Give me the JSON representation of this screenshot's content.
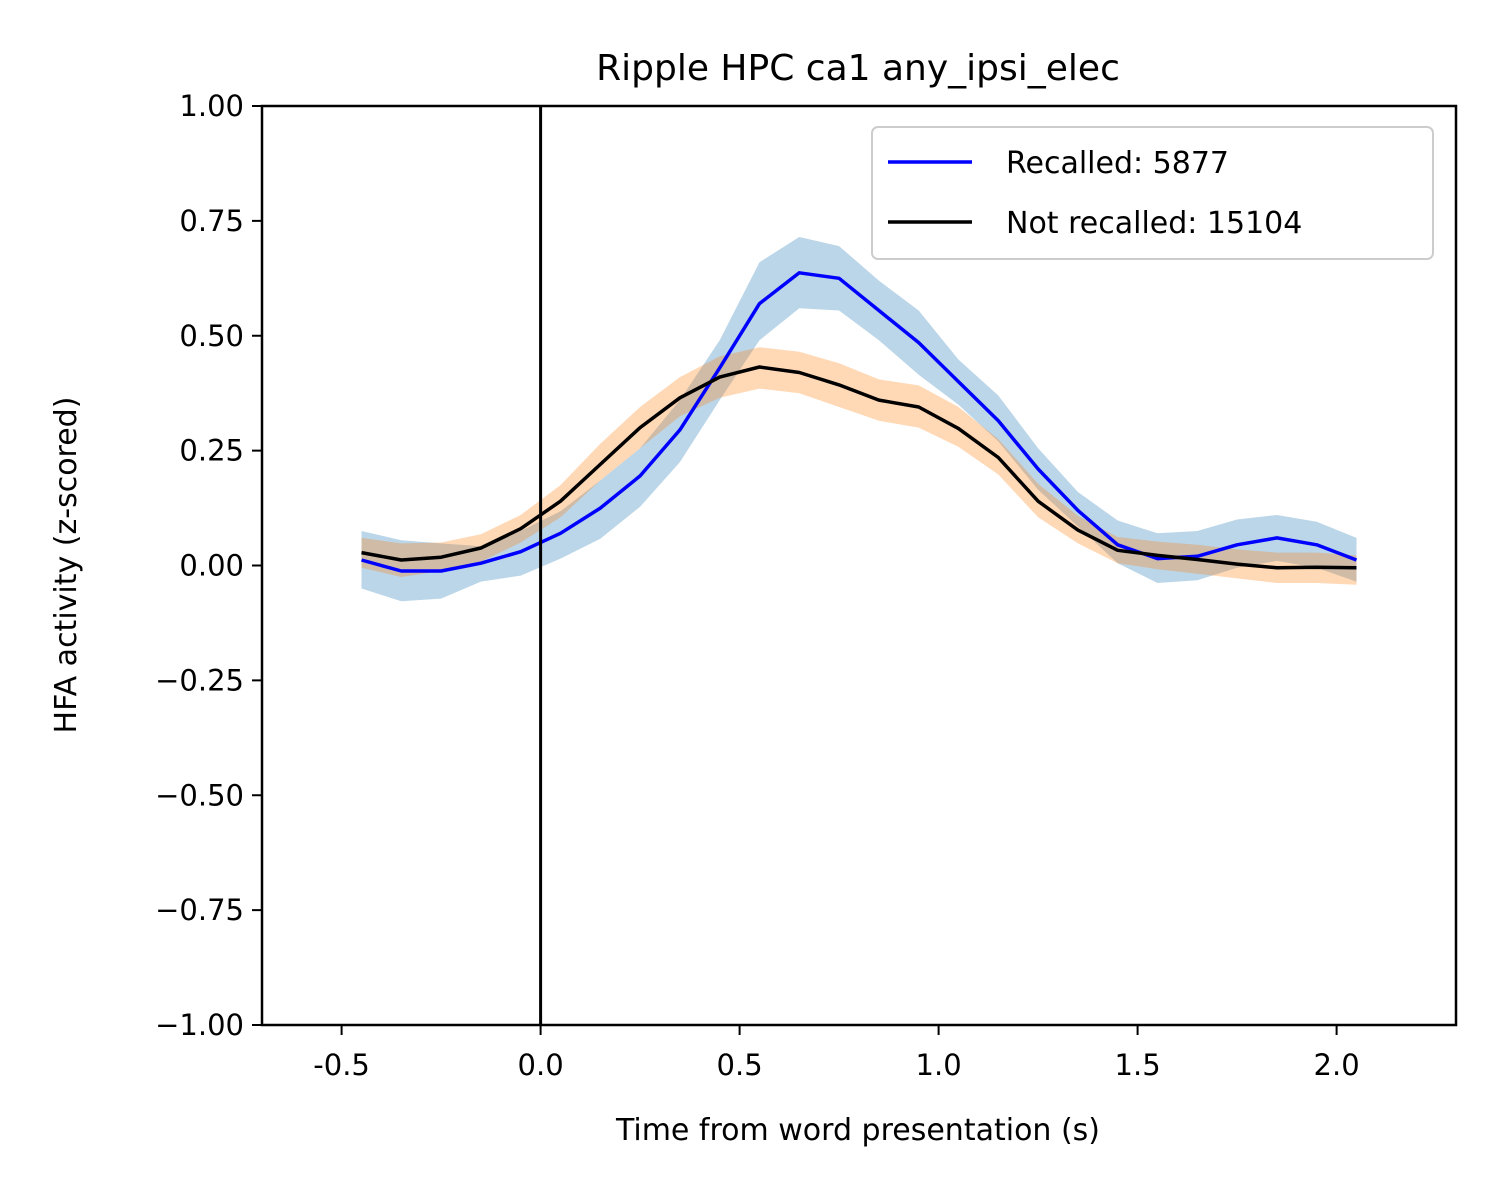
{
  "chart_data": {
    "type": "line",
    "title": "Ripple HPC ca1 any_ipsi_elec",
    "xlabel": "Time from word presentation (s)",
    "ylabel": "HFA activity (z-scored)",
    "xlim": [
      -0.7,
      2.3
    ],
    "ylim": [
      -1.0,
      1.0
    ],
    "xticks": [
      -0.5,
      0.0,
      0.5,
      1.0,
      1.5,
      2.0
    ],
    "xtick_labels": [
      "-0.5",
      "0.0",
      "0.5",
      "1.0",
      "1.5",
      "2.0"
    ],
    "yticks": [
      -1.0,
      -0.75,
      -0.5,
      -0.25,
      0.0,
      0.25,
      0.5,
      0.75,
      1.0
    ],
    "ytick_labels": [
      "−1.00",
      "−0.75",
      "−0.50",
      "−0.25",
      "0.00",
      "0.25",
      "0.50",
      "0.75",
      "1.00"
    ],
    "vline_x": 0.0,
    "grid": false,
    "legend_position": "top-right",
    "x": [
      -0.45,
      -0.35,
      -0.25,
      -0.15,
      -0.05,
      0.05,
      0.15,
      0.25,
      0.35,
      0.45,
      0.55,
      0.65,
      0.75,
      0.85,
      0.95,
      1.05,
      1.15,
      1.25,
      1.35,
      1.45,
      1.55,
      1.65,
      1.75,
      1.85,
      1.95,
      2.05
    ],
    "series": [
      {
        "name": "Recalled: 5877",
        "color": "#0000ff",
        "band_color": "#1f77b4",
        "values": [
          0.012,
          -0.012,
          -0.012,
          0.005,
          0.03,
          0.07,
          0.125,
          0.195,
          0.295,
          0.43,
          0.57,
          0.637,
          0.625,
          0.555,
          0.485,
          0.4,
          0.315,
          0.21,
          0.12,
          0.045,
          0.015,
          0.02,
          0.045,
          0.06,
          0.045,
          0.012
        ],
        "lower": [
          -0.05,
          -0.078,
          -0.072,
          -0.035,
          -0.022,
          0.015,
          0.058,
          0.128,
          0.225,
          0.36,
          0.49,
          0.56,
          0.555,
          0.49,
          0.415,
          0.35,
          0.27,
          0.165,
          0.085,
          0.005,
          -0.038,
          -0.032,
          -0.005,
          0.01,
          -0.005,
          -0.035
        ],
        "upper": [
          0.075,
          0.055,
          0.048,
          0.042,
          0.075,
          0.118,
          0.185,
          0.255,
          0.36,
          0.49,
          0.66,
          0.715,
          0.695,
          0.62,
          0.555,
          0.448,
          0.37,
          0.255,
          0.16,
          0.098,
          0.07,
          0.075,
          0.1,
          0.11,
          0.095,
          0.06
        ]
      },
      {
        "name": "Not recalled: 15104",
        "color": "#000000",
        "band_color": "#ff7f0e",
        "values": [
          0.028,
          0.012,
          0.018,
          0.038,
          0.08,
          0.14,
          0.22,
          0.3,
          0.365,
          0.41,
          0.432,
          0.42,
          0.393,
          0.36,
          0.345,
          0.298,
          0.235,
          0.14,
          0.077,
          0.033,
          0.022,
          0.013,
          0.003,
          -0.005,
          -0.004,
          -0.005
        ],
        "lower": [
          -0.005,
          -0.025,
          -0.012,
          0.008,
          0.05,
          0.105,
          0.185,
          0.255,
          0.325,
          0.365,
          0.385,
          0.375,
          0.345,
          0.315,
          0.3,
          0.258,
          0.198,
          0.105,
          0.048,
          0.005,
          -0.008,
          -0.018,
          -0.028,
          -0.038,
          -0.038,
          -0.042
        ],
        "upper": [
          0.06,
          0.048,
          0.05,
          0.068,
          0.11,
          0.175,
          0.265,
          0.345,
          0.41,
          0.455,
          0.475,
          0.465,
          0.44,
          0.405,
          0.392,
          0.345,
          0.275,
          0.178,
          0.108,
          0.062,
          0.052,
          0.045,
          0.035,
          0.028,
          0.028,
          0.022
        ]
      }
    ]
  }
}
